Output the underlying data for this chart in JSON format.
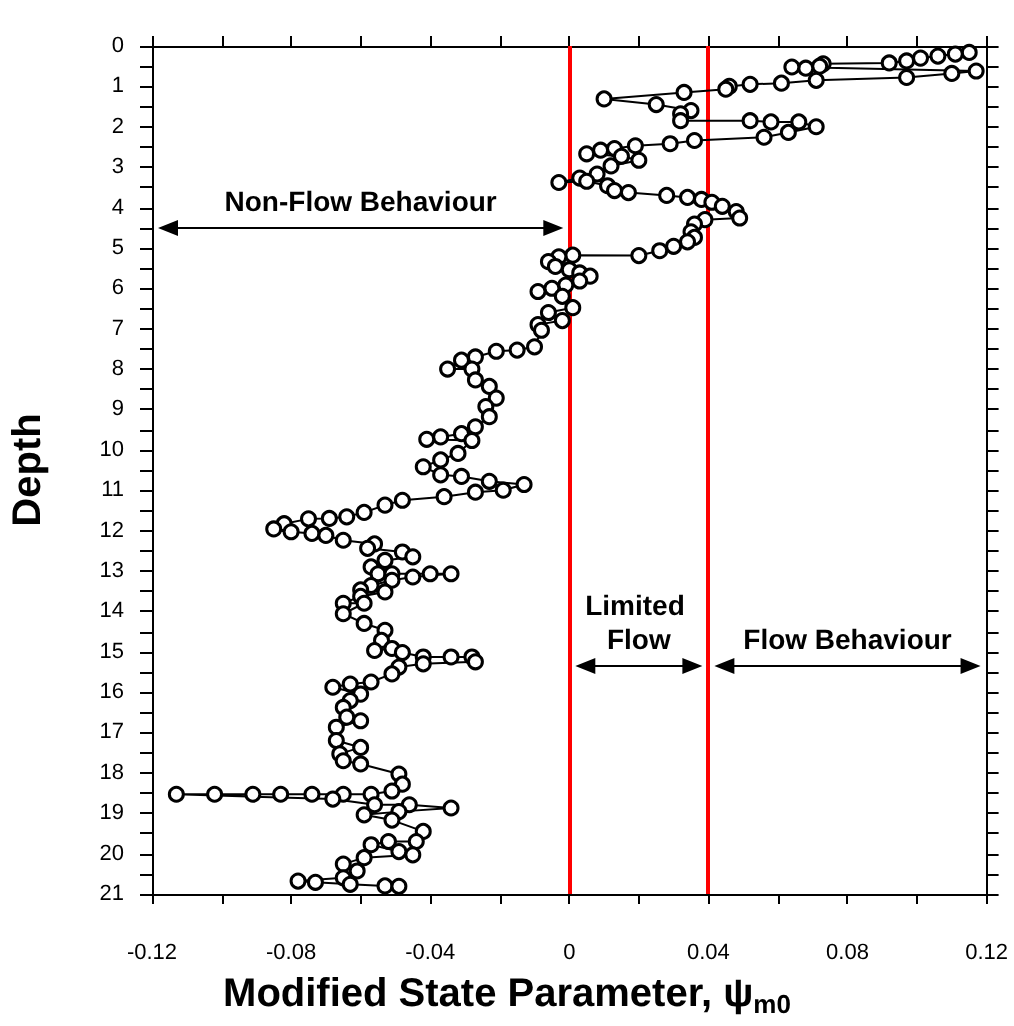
{
  "chart_data": {
    "type": "line",
    "xlabel": "Modified State Parameter, ψ$_{m0}$",
    "ylabel": "Depth",
    "marker": "circle",
    "line_style": "solid",
    "xlim": [
      -0.12,
      0.12
    ],
    "ylim": [
      21,
      0
    ],
    "xticks": [
      -0.12,
      {
        "value": -0.1,
        "label": null
      },
      -0.08,
      {
        "value": -0.06,
        "label": null
      },
      -0.04,
      {
        "value": -0.02,
        "label": null
      },
      0,
      {
        "value": 0.02,
        "label": null
      },
      0.04,
      {
        "value": 0.06,
        "label": null
      },
      0.08,
      {
        "value": 0.1,
        "label": null
      },
      0.12
    ],
    "yticks": [
      0,
      {
        "value": 0.5,
        "label": null
      },
      1,
      {
        "value": 1.5,
        "label": null
      },
      2,
      {
        "value": 2.5,
        "label": null
      },
      3,
      {
        "value": 3.5,
        "label": null
      },
      4,
      {
        "value": 4.5,
        "label": null
      },
      5,
      {
        "value": 5.5,
        "label": null
      },
      6,
      {
        "value": 6.5,
        "label": null
      },
      7,
      {
        "value": 7.5,
        "label": null
      },
      8,
      {
        "value": 8.5,
        "label": null
      },
      9,
      {
        "value": 9.5,
        "label": null
      },
      10,
      {
        "value": 10.5,
        "label": null
      },
      11,
      {
        "value": 11.5,
        "label": null
      },
      12,
      {
        "value": 12.5,
        "label": null
      },
      13,
      {
        "value": 13.5,
        "label": null
      },
      14,
      {
        "value": 14.5,
        "label": null
      },
      15,
      {
        "value": 15.5,
        "label": null
      },
      16,
      {
        "value": 16.5,
        "label": null
      },
      17,
      {
        "value": 17.5,
        "label": null
      },
      18,
      {
        "value": 18.5,
        "label": null
      },
      19,
      {
        "value": 19.5,
        "label": null
      },
      20,
      {
        "value": 20.5,
        "label": null
      },
      21
    ],
    "x": [
      0.115,
      0.111,
      0.106,
      0.101,
      0.097,
      0.092,
      0.073,
      0.072,
      0.068,
      0.064,
      0.117,
      0.11,
      0.097,
      0.071,
      0.061,
      0.052,
      0.046,
      0.045,
      0.033,
      0.01,
      0.025,
      0.035,
      0.032,
      0.032,
      0.052,
      0.058,
      0.066,
      0.071,
      0.063,
      0.056,
      0.036,
      0.029,
      0.019,
      0.013,
      0.009,
      0.005,
      0.015,
      0.02,
      0.012,
      0.008,
      0.003,
      -0.003,
      0.005,
      0.011,
      0.013,
      0.017,
      0.028,
      0.034,
      0.038,
      0.041,
      0.044,
      0.048,
      0.049,
      0.039,
      0.036,
      0.035,
      0.036,
      0.034,
      0.03,
      0.026,
      0.02,
      0.001,
      -0.003,
      -0.006,
      -0.004,
      0.0,
      0.003,
      0.006,
      0.003,
      -0.001,
      -0.005,
      -0.009,
      -0.002,
      0.001,
      -0.006,
      -0.002,
      -0.009,
      -0.008,
      -0.01,
      -0.015,
      -0.021,
      -0.027,
      -0.031,
      -0.035,
      -0.028,
      -0.027,
      -0.023,
      -0.021,
      -0.024,
      -0.023,
      -0.027,
      -0.031,
      -0.037,
      -0.041,
      -0.028,
      -0.032,
      -0.037,
      -0.042,
      -0.037,
      -0.031,
      -0.023,
      -0.013,
      -0.019,
      -0.027,
      -0.036,
      -0.048,
      -0.053,
      -0.059,
      -0.064,
      -0.069,
      -0.075,
      -0.082,
      -0.085,
      -0.08,
      -0.074,
      -0.07,
      -0.065,
      -0.056,
      -0.058,
      -0.048,
      -0.045,
      -0.053,
      -0.057,
      -0.055,
      -0.051,
      -0.04,
      -0.034,
      -0.045,
      -0.051,
      -0.057,
      -0.06,
      -0.053,
      -0.06,
      -0.065,
      -0.059,
      -0.065,
      -0.059,
      -0.053,
      -0.054,
      -0.056,
      -0.051,
      -0.048,
      -0.042,
      -0.034,
      -0.028,
      -0.027,
      -0.042,
      -0.049,
      -0.051,
      -0.057,
      -0.063,
      -0.068,
      -0.06,
      -0.063,
      -0.065,
      -0.064,
      -0.06,
      -0.067,
      -0.067,
      -0.06,
      -0.066,
      -0.065,
      -0.06,
      -0.049,
      -0.048,
      -0.051,
      -0.057,
      -0.065,
      -0.074,
      -0.083,
      -0.091,
      -0.102,
      -0.113,
      -0.068,
      -0.056,
      -0.046,
      -0.034,
      -0.049,
      -0.059,
      -0.051,
      -0.042,
      -0.044,
      -0.052,
      -0.057,
      -0.049,
      -0.045,
      -0.059,
      -0.065,
      -0.061,
      -0.065,
      -0.078,
      -0.073,
      -0.063,
      -0.053,
      -0.049
    ],
    "series": [
      {
        "color": "#000000",
        "values": [
          0.16,
          0.2,
          0.25,
          0.3,
          0.37,
          0.42,
          0.44,
          0.5,
          0.55,
          0.52,
          0.62,
          0.68,
          0.78,
          0.85,
          0.92,
          0.95,
          1.0,
          1.07,
          1.15,
          1.31,
          1.45,
          1.6,
          1.68,
          1.85,
          1.85,
          1.88,
          1.88,
          2.0,
          2.14,
          2.26,
          2.34,
          2.42,
          2.47,
          2.54,
          2.58,
          2.67,
          2.73,
          2.83,
          2.97,
          3.17,
          3.27,
          3.38,
          3.35,
          3.46,
          3.58,
          3.63,
          3.7,
          3.75,
          3.8,
          3.87,
          3.97,
          4.1,
          4.26,
          4.3,
          4.41,
          4.6,
          4.74,
          4.85,
          4.96,
          5.07,
          5.19,
          5.18,
          5.22,
          5.34,
          5.46,
          5.54,
          5.62,
          5.7,
          5.82,
          5.92,
          6.0,
          6.08,
          6.2,
          6.48,
          6.6,
          6.8,
          6.9,
          7.04,
          7.45,
          7.53,
          7.56,
          7.7,
          7.78,
          8.0,
          8.0,
          8.27,
          8.43,
          8.72,
          8.93,
          9.18,
          9.43,
          9.6,
          9.68,
          9.74,
          9.77,
          10.09,
          10.25,
          10.42,
          10.62,
          10.66,
          10.78,
          10.86,
          11.0,
          11.05,
          11.16,
          11.25,
          11.37,
          11.55,
          11.66,
          11.7,
          11.71,
          11.83,
          11.96,
          12.03,
          12.07,
          12.12,
          12.24,
          12.33,
          12.44,
          12.53,
          12.65,
          12.74,
          12.9,
          13.07,
          13.07,
          13.07,
          13.07,
          13.15,
          13.23,
          13.36,
          13.47,
          13.52,
          13.63,
          13.8,
          13.8,
          14.06,
          14.3,
          14.47,
          14.72,
          14.97,
          14.92,
          15.02,
          15.13,
          15.13,
          15.13,
          15.25,
          15.3,
          15.38,
          15.55,
          15.75,
          15.8,
          15.88,
          16.05,
          16.21,
          16.38,
          16.62,
          16.71,
          16.87,
          17.2,
          17.37,
          17.53,
          17.7,
          17.78,
          18.03,
          18.28,
          18.45,
          18.53,
          18.53,
          18.53,
          18.53,
          18.53,
          18.53,
          18.53,
          18.65,
          18.79,
          18.79,
          18.87,
          18.96,
          19.04,
          19.17,
          19.45,
          19.7,
          19.7,
          19.78,
          19.95,
          20.03,
          20.1,
          20.26,
          20.43,
          20.6,
          20.68,
          20.71,
          20.76,
          20.8,
          20.81
        ]
      }
    ],
    "ref_lines": [
      {
        "axis": "x",
        "value": 0,
        "color": "#ff0000",
        "line_style": "solid"
      },
      {
        "axis": "x",
        "value": 0.04,
        "color": "#ff0000",
        "line_style": "solid"
      }
    ],
    "annotations": [
      "Non-Flow Behaviour",
      "Limited Flow",
      "Flow Behaviour"
    ]
  }
}
